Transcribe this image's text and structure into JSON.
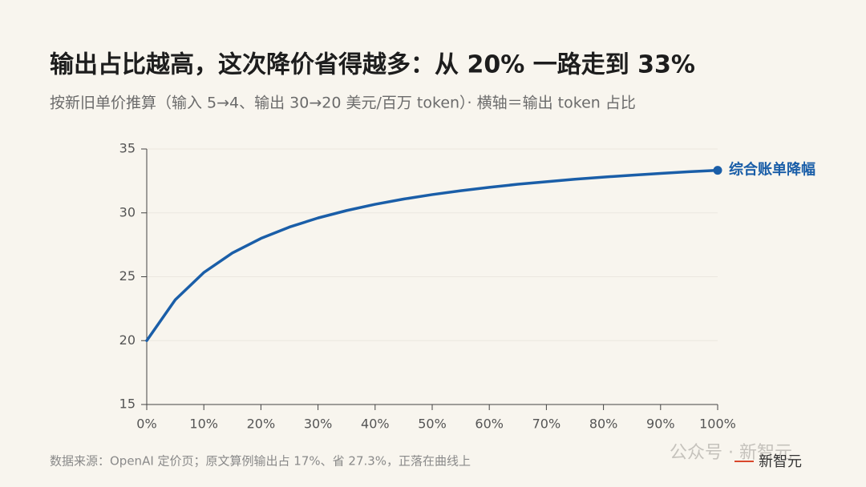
{
  "chart_data": {
    "type": "line",
    "title": "输出占比越高，这次降价省得越多：从 20% 一路走到 33%",
    "subtitle": "按新旧单价推算（输入 5→4、输出 30→20 美元/百万 token）· 横轴＝输出 token 占比",
    "x": [
      0,
      5,
      10,
      15,
      20,
      25,
      30,
      35,
      40,
      45,
      50,
      55,
      60,
      65,
      70,
      75,
      80,
      85,
      90,
      95,
      100
    ],
    "series": [
      {
        "name": "综合账单降幅",
        "color": "#1a5ea8",
        "values": [
          20,
          23.2,
          25.33,
          26.86,
          28,
          28.89,
          29.6,
          30.18,
          30.67,
          31.08,
          31.43,
          31.73,
          32,
          32.24,
          32.44,
          32.63,
          32.8,
          32.95,
          33.09,
          33.22,
          33.33
        ]
      }
    ],
    "xlim": [
      0,
      100
    ],
    "xticks": [
      {
        "value": 0,
        "label": "0%"
      },
      {
        "value": 10,
        "label": "10%"
      },
      {
        "value": 20,
        "label": "20%"
      },
      {
        "value": 30,
        "label": "30%"
      },
      {
        "value": 40,
        "label": "40%"
      },
      {
        "value": 50,
        "label": "50%"
      },
      {
        "value": 60,
        "label": "60%"
      },
      {
        "value": 70,
        "label": "70%"
      },
      {
        "value": 80,
        "label": "80%"
      },
      {
        "value": 90,
        "label": "90%"
      },
      {
        "value": 100,
        "label": "100%"
      }
    ],
    "ylim": [
      15,
      35
    ],
    "yticks": [
      15,
      20,
      25,
      30,
      35
    ],
    "grid": true,
    "source": "数据来源：OpenAI 定价页；原文算例输出占 17%、省 27.3%，正落在曲线上",
    "watermark": "公众号 · 新智元",
    "logo": "新智元"
  }
}
